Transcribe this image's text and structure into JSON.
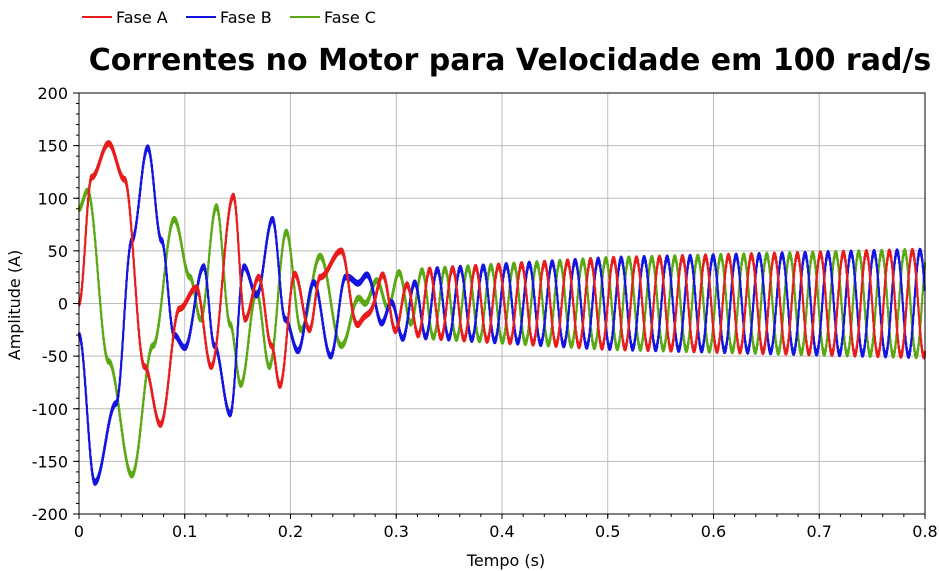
{
  "chart_data": {
    "type": "line",
    "title": "Correntes no Motor para Velocidade em 100 rad/s",
    "xlabel": "Tempo (s)",
    "ylabel": "Amplitude (A)",
    "xlim": [
      0,
      0.8
    ],
    "ylim": [
      -200,
      200
    ],
    "xticks": [
      "0",
      "0.1",
      "0.2",
      "0.3",
      "0.4",
      "0.5",
      "0.6",
      "0.7",
      "0.8"
    ],
    "yticks": [
      "200",
      "150",
      "100",
      "50",
      "0",
      "-50",
      "-100",
      "-150",
      "-200"
    ],
    "grid": true,
    "legend_position": "top-left",
    "series": [
      {
        "name": "Fase A",
        "color": "#e81c1c",
        "x": [
          0,
          0.012,
          0.028,
          0.043,
          0.062,
          0.077,
          0.095,
          0.111,
          0.125,
          0.146,
          0.157,
          0.17,
          0.182,
          0.19,
          0.204,
          0.218,
          0.228,
          0.248,
          0.265,
          0.285,
          0.3
        ],
        "y": [
          0,
          120,
          152,
          118,
          -60,
          -115,
          -5,
          15,
          -60,
          102,
          -15,
          25,
          -40,
          -78,
          28,
          -25,
          25,
          50,
          -30,
          28,
          -20
        ]
      },
      {
        "name": "Fase B",
        "color": "#1414e0",
        "x": [
          0,
          0.015,
          0.035,
          0.05,
          0.065,
          0.078,
          0.09,
          0.1,
          0.118,
          0.128,
          0.143,
          0.156,
          0.168,
          0.183,
          0.195,
          0.207,
          0.222,
          0.238,
          0.252,
          0.268,
          0.3
        ],
        "y": [
          -30,
          -170,
          -95,
          60,
          148,
          60,
          -30,
          -42,
          35,
          -40,
          -105,
          35,
          8,
          80,
          -15,
          -45,
          20,
          -50,
          25,
          30,
          -40
        ]
      },
      {
        "name": "Fase C",
        "color": "#5aa814",
        "x": [
          0,
          0.008,
          0.028,
          0.05,
          0.07,
          0.09,
          0.105,
          0.115,
          0.13,
          0.143,
          0.153,
          0.168,
          0.18,
          0.196,
          0.21,
          0.228,
          0.248,
          0.268,
          0.3
        ],
        "y": [
          90,
          107,
          -55,
          -163,
          -40,
          80,
          25,
          -15,
          92,
          -20,
          -77,
          10,
          -60,
          68,
          -25,
          45,
          -40,
          10,
          28
        ]
      }
    ],
    "steady_state": {
      "frequency_hz": 46,
      "segments": [
        {
          "t": 0.3,
          "amplitude": 30
        },
        {
          "t": 0.5,
          "amplitude": 42
        },
        {
          "t": 0.8,
          "amplitude": 50
        }
      ]
    }
  }
}
